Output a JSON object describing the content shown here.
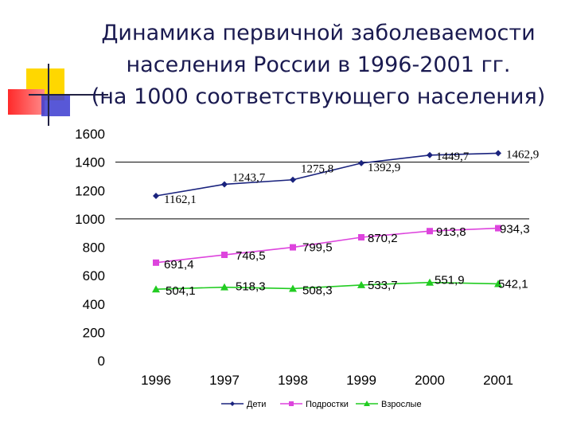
{
  "title_lines": [
    "Динамика первичной заболеваемости",
    "населения России в 1996-2001 гг.",
    "(на 1000 соответствующего населения)"
  ],
  "colors": {
    "title": "#1a1a50",
    "deco_yellow": "#ffd700",
    "deco_red": "#ff3333",
    "deco_blue": "#3333cc",
    "deco_line": "#222244"
  },
  "chart_data": {
    "type": "line",
    "categories": [
      "1996",
      "1997",
      "1998",
      "1999",
      "2000",
      "2001"
    ],
    "ylim": [
      0,
      1600
    ],
    "yticks": [
      "0",
      "200",
      "400",
      "600",
      "800",
      "1000",
      "1200",
      "1400",
      "1600"
    ],
    "grid": "horizontal lines at 1000 and 1400",
    "legend_position": "bottom",
    "series": [
      {
        "name": "Дети",
        "values": [
          1162.1,
          1243.7,
          1275.8,
          1392.9,
          1449.7,
          1462.9
        ],
        "labels": [
          "1162,1",
          "1243,7",
          "1275,8",
          "1392,9",
          "1449,7",
          "1462,9"
        ],
        "color": "#1a237e",
        "marker": "diamond"
      },
      {
        "name": "Подростки",
        "values": [
          691.4,
          746.5,
          799.5,
          870.2,
          913.8,
          934.3
        ],
        "labels": [
          "691,4",
          "746,5",
          "799,5",
          "870,2",
          "913,8",
          "934,3"
        ],
        "color": "#dd44dd",
        "marker": "square"
      },
      {
        "name": "Взрослые",
        "values": [
          504.1,
          518.3,
          508.3,
          533.7,
          551.9,
          542.1
        ],
        "labels": [
          "504,1",
          "518,3",
          "508,3",
          "533,7",
          "551,9",
          "542,1"
        ],
        "color": "#22cc22",
        "marker": "triangle"
      }
    ]
  }
}
